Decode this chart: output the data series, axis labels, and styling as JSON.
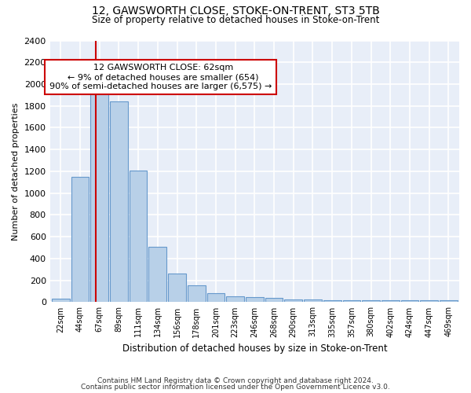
{
  "title1": "12, GAWSWORTH CLOSE, STOKE-ON-TRENT, ST3 5TB",
  "title2": "Size of property relative to detached houses in Stoke-on-Trent",
  "xlabel": "Distribution of detached houses by size in Stoke-on-Trent",
  "ylabel": "Number of detached properties",
  "footer1": "Contains HM Land Registry data © Crown copyright and database right 2024.",
  "footer2": "Contains public sector information licensed under the Open Government Licence v3.0.",
  "annotation_line1": "12 GAWSWORTH CLOSE: 62sqm",
  "annotation_line2": "← 9% of detached houses are smaller (654)",
  "annotation_line3": "90% of semi-detached houses are larger (6,575) →",
  "bar_color": "#b8d0e8",
  "bar_edge_color": "#6699cc",
  "vline_color": "#cc0000",
  "annotation_box_edgecolor": "#cc0000",
  "bg_color": "#e8eef8",
  "grid_color": "#ffffff",
  "categories": [
    "22sqm",
    "44sqm",
    "67sqm",
    "89sqm",
    "111sqm",
    "134sqm",
    "156sqm",
    "178sqm",
    "201sqm",
    "223sqm",
    "246sqm",
    "268sqm",
    "290sqm",
    "313sqm",
    "335sqm",
    "357sqm",
    "380sqm",
    "402sqm",
    "424sqm",
    "447sqm",
    "469sqm"
  ],
  "values": [
    30,
    1150,
    1950,
    1840,
    1210,
    510,
    265,
    155,
    80,
    50,
    45,
    40,
    22,
    22,
    18,
    20,
    20,
    20,
    20,
    20,
    20
  ],
  "ylim": [
    0,
    2400
  ],
  "yticks": [
    0,
    200,
    400,
    600,
    800,
    1000,
    1200,
    1400,
    1600,
    1800,
    2000,
    2200,
    2400
  ],
  "vline_x_idx": 1.82
}
